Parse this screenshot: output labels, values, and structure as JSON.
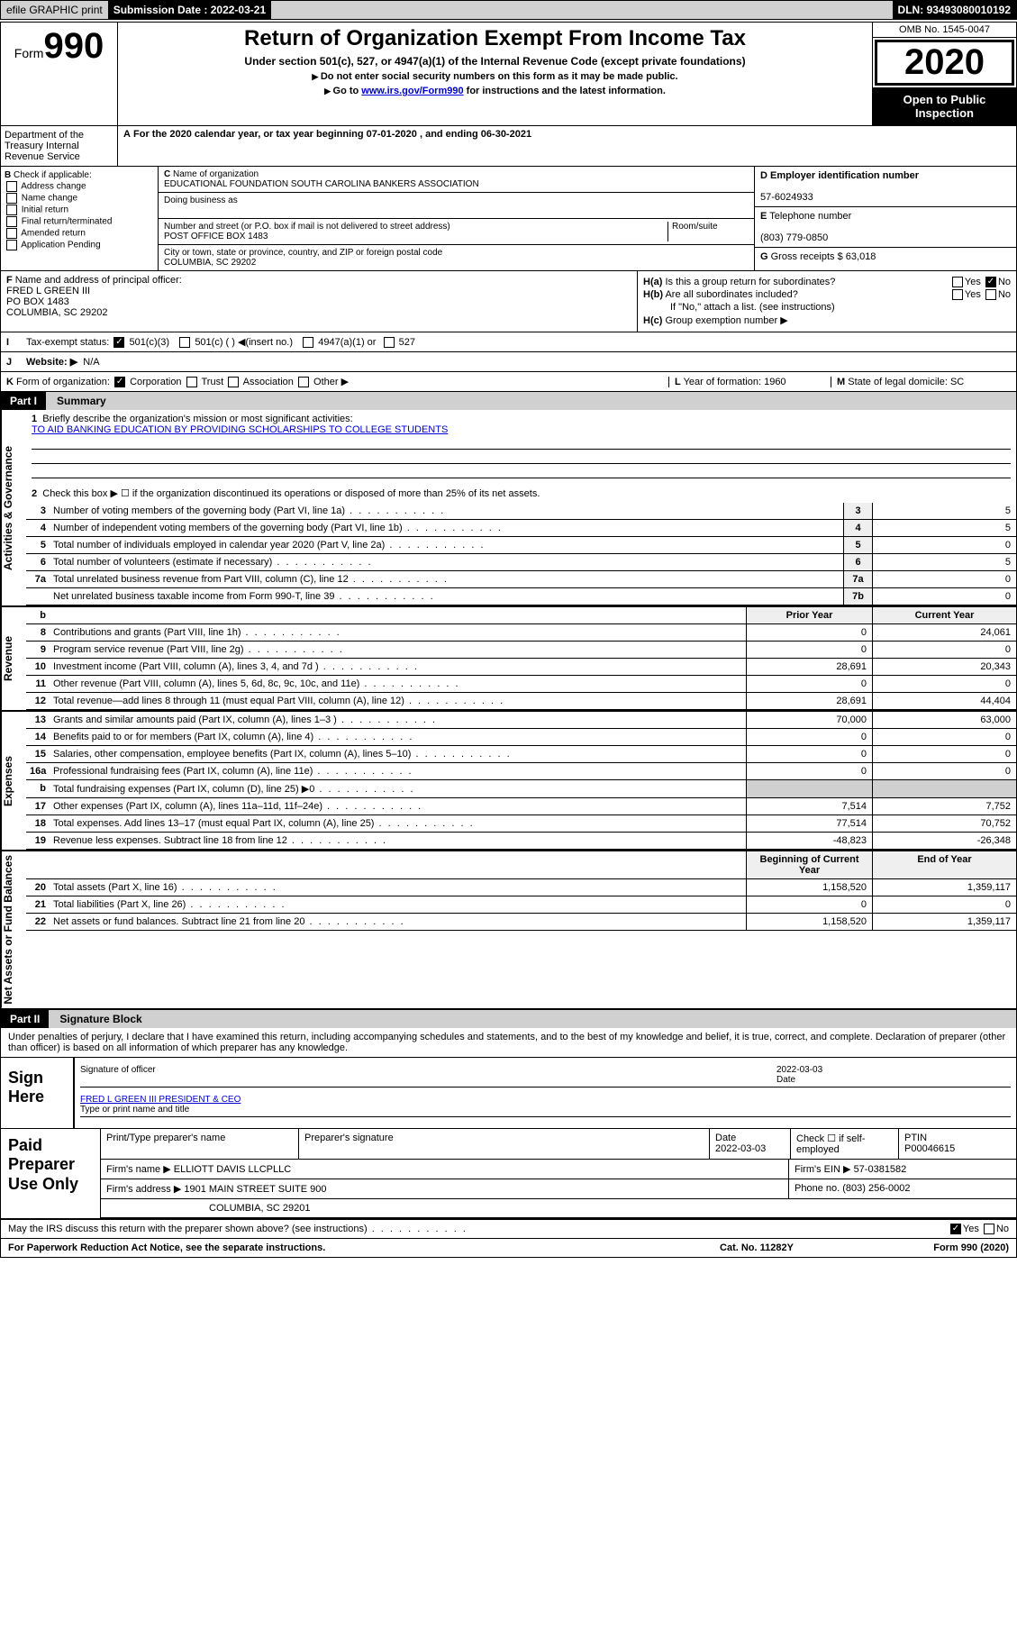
{
  "header": {
    "efile": "efile GRAPHIC print",
    "submission_label": "Submission Date :",
    "submission_date": "2022-03-21",
    "dln_label": "DLN:",
    "dln": "93493080010192"
  },
  "top": {
    "form_prefix": "Form",
    "form_number": "990",
    "title": "Return of Organization Exempt From Income Tax",
    "subtitle": "Under section 501(c), 527, or 4947(a)(1) of the Internal Revenue Code (except private foundations)",
    "note1": "Do not enter social security numbers on this form as it may be made public.",
    "note2_pre": "Go to ",
    "note2_link": "www.irs.gov/Form990",
    "note2_post": " for instructions and the latest information.",
    "omb": "OMB No. 1545-0047",
    "year": "2020",
    "open_public": "Open to Public Inspection",
    "dept": "Department of the Treasury Internal Revenue Service"
  },
  "period": {
    "text_pre": "For the 2020 calendar year, or tax year beginning ",
    "begin": "07-01-2020",
    "text_mid": " , and ending ",
    "end": "06-30-2021"
  },
  "checkB": {
    "label": "Check if applicable:",
    "addr": "Address change",
    "name": "Name change",
    "initial": "Initial return",
    "final": "Final return/terminated",
    "amended": "Amended return",
    "pending": "Application Pending"
  },
  "orgC": {
    "name_label": "Name of organization",
    "name": "EDUCATIONAL FOUNDATION SOUTH CAROLINA BANKERS ASSOCIATION",
    "dba_label": "Doing business as",
    "dba": "",
    "street_label": "Number and street (or P.O. box if mail is not delivered to street address)",
    "room_label": "Room/suite",
    "street": "POST OFFICE BOX 1483",
    "city_label": "City or town, state or province, country, and ZIP or foreign postal code",
    "city": "COLUMBIA, SC  29202"
  },
  "orgD": {
    "ein_label": "Employer identification number",
    "ein": "57-6024933",
    "tel_label": "Telephone number",
    "tel": "(803) 779-0850",
    "gross_label": "Gross receipts $",
    "gross": "63,018"
  },
  "officerF": {
    "label": "Name and address of principal officer:",
    "name": "FRED L GREEN III",
    "addr1": "PO BOX 1483",
    "addr2": "COLUMBIA, SC  29202"
  },
  "groupH": {
    "a": "Is this a group return for subordinates?",
    "b": "Are all subordinates included?",
    "b_note": "If \"No,\" attach a list. (see instructions)",
    "c": "Group exemption number ▶"
  },
  "taxI": {
    "label": "Tax-exempt status:",
    "o1": "501(c)(3)",
    "o2": "501(c) (   ) ◀(insert no.)",
    "o3": "4947(a)(1) or",
    "o4": "527"
  },
  "webJ": {
    "label": "Website: ▶",
    "value": "N/A"
  },
  "korg": {
    "label": "Form of organization:",
    "corp": "Corporation",
    "trust": "Trust",
    "assoc": "Association",
    "other": "Other ▶",
    "year_label": "Year of formation:",
    "year": "1960",
    "state_label": "State of legal domicile:",
    "state": "SC"
  },
  "part1": {
    "label": "Part I",
    "title": "Summary"
  },
  "summary": {
    "line1": "Briefly describe the organization's mission or most significant activities:",
    "mission": "TO AID BANKING EDUCATION BY PROVIDING SCHOLARSHIPS TO COLLEGE STUDENTS",
    "line2": "Check this box ▶ ☐ if the organization discontinued its operations or disposed of more than 25% of its net assets.",
    "rows_ag": [
      {
        "n": "3",
        "t": "Number of voting members of the governing body (Part VI, line 1a)",
        "b": "3",
        "v": "5"
      },
      {
        "n": "4",
        "t": "Number of independent voting members of the governing body (Part VI, line 1b)",
        "b": "4",
        "v": "5"
      },
      {
        "n": "5",
        "t": "Total number of individuals employed in calendar year 2020 (Part V, line 2a)",
        "b": "5",
        "v": "0"
      },
      {
        "n": "6",
        "t": "Total number of volunteers (estimate if necessary)",
        "b": "6",
        "v": "5"
      },
      {
        "n": "7a",
        "t": "Total unrelated business revenue from Part VIII, column (C), line 12",
        "b": "7a",
        "v": "0"
      },
      {
        "n": "",
        "t": "Net unrelated business taxable income from Form 990-T, line 39",
        "b": "7b",
        "v": "0"
      }
    ],
    "hdr_prior": "Prior Year",
    "hdr_curr": "Current Year",
    "rows_rev": [
      {
        "n": "8",
        "t": "Contributions and grants (Part VIII, line 1h)",
        "p": "0",
        "c": "24,061"
      },
      {
        "n": "9",
        "t": "Program service revenue (Part VIII, line 2g)",
        "p": "0",
        "c": "0"
      },
      {
        "n": "10",
        "t": "Investment income (Part VIII, column (A), lines 3, 4, and 7d )",
        "p": "28,691",
        "c": "20,343"
      },
      {
        "n": "11",
        "t": "Other revenue (Part VIII, column (A), lines 5, 6d, 8c, 9c, 10c, and 11e)",
        "p": "0",
        "c": "0"
      },
      {
        "n": "12",
        "t": "Total revenue—add lines 8 through 11 (must equal Part VIII, column (A), line 12)",
        "p": "28,691",
        "c": "44,404"
      }
    ],
    "rows_exp": [
      {
        "n": "13",
        "t": "Grants and similar amounts paid (Part IX, column (A), lines 1–3 )",
        "p": "70,000",
        "c": "63,000"
      },
      {
        "n": "14",
        "t": "Benefits paid to or for members (Part IX, column (A), line 4)",
        "p": "0",
        "c": "0"
      },
      {
        "n": "15",
        "t": "Salaries, other compensation, employee benefits (Part IX, column (A), lines 5–10)",
        "p": "0",
        "c": "0"
      },
      {
        "n": "16a",
        "t": "Professional fundraising fees (Part IX, column (A), line 11e)",
        "p": "0",
        "c": "0"
      },
      {
        "n": "b",
        "t": "Total fundraising expenses (Part IX, column (D), line 25) ▶0",
        "p": "",
        "c": "",
        "grey": true
      },
      {
        "n": "17",
        "t": "Other expenses (Part IX, column (A), lines 11a–11d, 11f–24e)",
        "p": "7,514",
        "c": "7,752"
      },
      {
        "n": "18",
        "t": "Total expenses. Add lines 13–17 (must equal Part IX, column (A), line 25)",
        "p": "77,514",
        "c": "70,752"
      },
      {
        "n": "19",
        "t": "Revenue less expenses. Subtract line 18 from line 12",
        "p": "-48,823",
        "c": "-26,348"
      }
    ],
    "hdr_beg": "Beginning of Current Year",
    "hdr_end": "End of Year",
    "rows_na": [
      {
        "n": "20",
        "t": "Total assets (Part X, line 16)",
        "p": "1,158,520",
        "c": "1,359,117"
      },
      {
        "n": "21",
        "t": "Total liabilities (Part X, line 26)",
        "p": "0",
        "c": "0"
      },
      {
        "n": "22",
        "t": "Net assets or fund balances. Subtract line 21 from line 20",
        "p": "1,158,520",
        "c": "1,359,117"
      }
    ]
  },
  "vtabs": {
    "ag": "Activities & Governance",
    "rev": "Revenue",
    "exp": "Expenses",
    "na": "Net Assets or Fund Balances"
  },
  "part2": {
    "label": "Part II",
    "title": "Signature Block"
  },
  "perjury": "Under penalties of perjury, I declare that I have examined this return, including accompanying schedules and statements, and to the best of my knowledge and belief, it is true, correct, and complete. Declaration of preparer (other than officer) is based on all information of which preparer has any knowledge.",
  "sign": {
    "label": "Sign Here",
    "sig_of": "Signature of officer",
    "date_label": "Date",
    "date": "2022-03-03",
    "name": "FRED L GREEN III PRESIDENT & CEO",
    "name_label": "Type or print name and title"
  },
  "paid": {
    "label": "Paid Preparer Use Only",
    "col1": "Print/Type preparer's name",
    "col2": "Preparer's signature",
    "col3_label": "Date",
    "col3": "2022-03-03",
    "col4": "Check ☐ if self-employed",
    "col5_label": "PTIN",
    "col5": "P00046615",
    "firm_label": "Firm's name    ▶",
    "firm": "ELLIOTT DAVIS LLCPLLC",
    "ein_label": "Firm's EIN ▶",
    "ein": "57-0381582",
    "addr_label": "Firm's address ▶",
    "addr1": "1901 MAIN STREET SUITE 900",
    "addr2": "COLUMBIA, SC  29201",
    "phone_label": "Phone no.",
    "phone": "(803) 256-0002"
  },
  "irs_discuss": "May the IRS discuss this return with the preparer shown above? (see instructions)",
  "footer": {
    "left": "For Paperwork Reduction Act Notice, see the separate instructions.",
    "mid": "Cat. No. 11282Y",
    "right": "Form 990 (2020)"
  }
}
